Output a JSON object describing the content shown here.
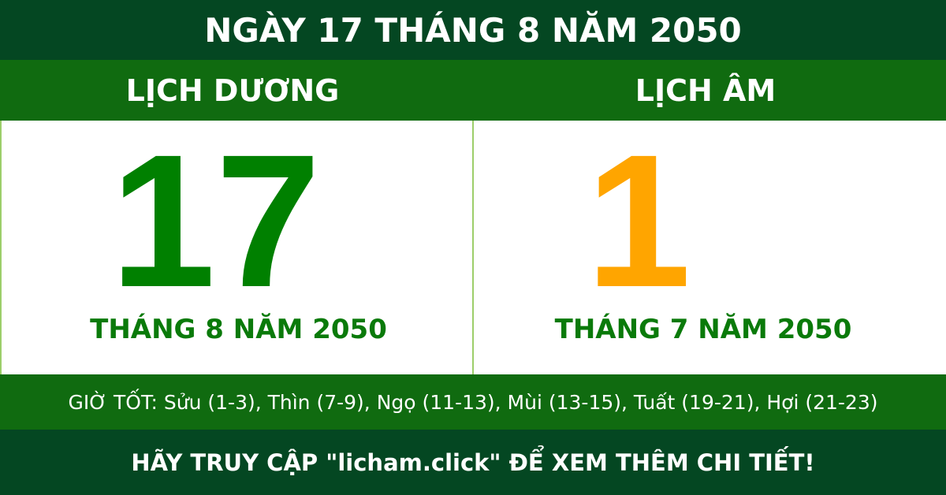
{
  "title": "NGÀY 17 THÁNG 8 NĂM 2050",
  "solar": {
    "label": "LỊCH DƯƠNG",
    "day": "17",
    "month_year": "THÁNG 8 NĂM 2050",
    "color": "#008000"
  },
  "lunar": {
    "label": "LỊCH ÂM",
    "day": "1",
    "month_year": "THÁNG 7 NĂM 2050",
    "color": "#FFA500"
  },
  "good_hours": "GIỜ TỐT: Sửu (1-3), Thìn (7-9), Ngọ (11-13), Mùi (13-15), Tuất (19-21), Hợi (21-23)",
  "footer": "HÃY TRUY CẬP \"licham.click\" ĐỂ XEM THÊM CHI TIẾT!"
}
